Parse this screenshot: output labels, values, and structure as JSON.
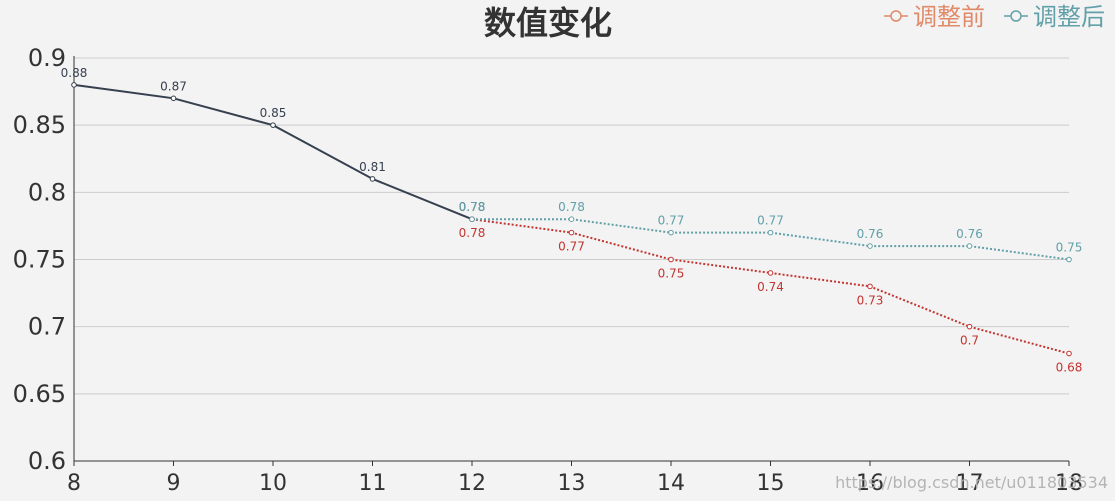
{
  "chart_data": {
    "type": "line",
    "title": "数值变化",
    "x": [
      8,
      9,
      10,
      11,
      12,
      13,
      14,
      15,
      16,
      17,
      18
    ],
    "ylim": [
      0.6,
      0.9
    ],
    "yticks": [
      "0.6",
      "0.65",
      "0.7",
      "0.75",
      "0.8",
      "0.85",
      "0.9"
    ],
    "grid": true,
    "legend_position": "top-right",
    "history": {
      "x": [
        8,
        9,
        10,
        11,
        12
      ],
      "values": [
        0.88,
        0.87,
        0.85,
        0.81,
        0.78
      ],
      "labels": [
        "0.88",
        "0.87",
        "0.85",
        "0.81",
        "0.78"
      ],
      "color": "#36404f"
    },
    "series": [
      {
        "name": "调整前",
        "x": [
          12,
          13,
          14,
          15,
          16,
          17,
          18
        ],
        "values": [
          0.78,
          0.77,
          0.75,
          0.74,
          0.73,
          0.7,
          0.68
        ],
        "labels": [
          "0.78",
          "0.77",
          "0.75",
          "0.74",
          "0.73",
          "0.7",
          "0.68"
        ],
        "color": "#c23531",
        "label_position": "below"
      },
      {
        "name": "调整后",
        "x": [
          12,
          13,
          14,
          15,
          16,
          17,
          18
        ],
        "values": [
          0.78,
          0.78,
          0.77,
          0.77,
          0.76,
          0.76,
          0.75
        ],
        "labels": [
          "0.78",
          "0.78",
          "0.77",
          "0.77",
          "0.76",
          "0.76",
          "0.75"
        ],
        "color": "#61a0a8",
        "label_position": "above"
      }
    ],
    "legend_colors": [
      "#e08a68",
      "#61a0a8"
    ]
  },
  "watermark": "https://blog.csdn.net/u011803534"
}
